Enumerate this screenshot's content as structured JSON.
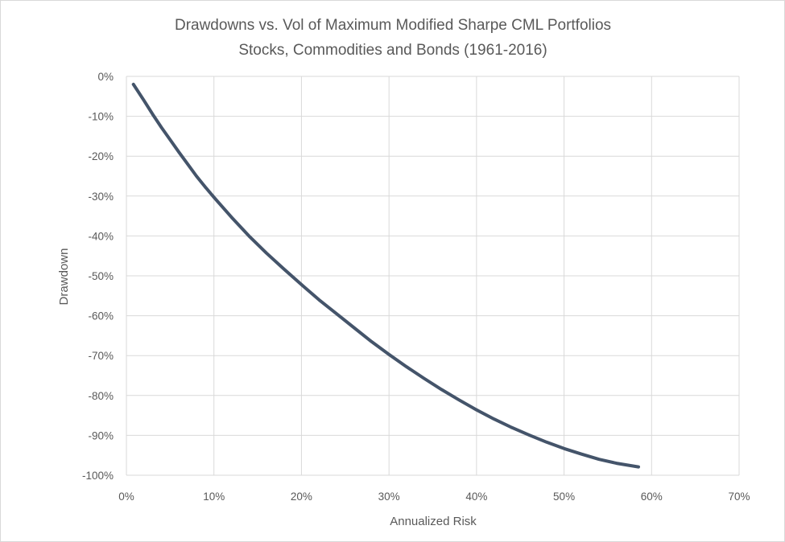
{
  "chart_data": {
    "type": "line",
    "title": "Drawdowns vs. Vol of Maximum Modified Sharpe CML Portfolios",
    "subtitle": "Stocks, Commodities and Bonds (1961-2016)",
    "xlabel": "Annualized Risk",
    "ylabel": "Drawdown",
    "xlim": [
      0,
      70
    ],
    "ylim": [
      -100,
      0
    ],
    "x_ticks": [
      "0%",
      "10%",
      "20%",
      "30%",
      "40%",
      "50%",
      "60%",
      "70%"
    ],
    "y_ticks": [
      "0%",
      "-10%",
      "-20%",
      "-30%",
      "-40%",
      "-50%",
      "-60%",
      "-70%",
      "-80%",
      "-90%",
      "-100%"
    ],
    "grid": true,
    "series_color": "#44546a",
    "x": [
      0.8,
      2,
      3,
      4,
      5,
      6,
      7,
      8,
      9,
      10,
      12,
      14,
      16,
      18,
      20,
      22,
      24,
      26,
      28,
      30,
      32,
      34,
      36,
      38,
      40,
      42,
      44,
      46,
      48,
      50,
      52,
      54,
      56,
      58.5
    ],
    "y": [
      -2,
      -6,
      -9.5,
      -12.8,
      -15.9,
      -19,
      -22,
      -25,
      -27.7,
      -30.3,
      -35.3,
      -40,
      -44.3,
      -48.3,
      -52.2,
      -56,
      -59.5,
      -63,
      -66.5,
      -69.7,
      -72.8,
      -75.7,
      -78.5,
      -81.1,
      -83.6,
      -85.9,
      -88,
      -89.9,
      -91.7,
      -93.3,
      -94.7,
      -96,
      -97,
      -97.9
    ]
  }
}
